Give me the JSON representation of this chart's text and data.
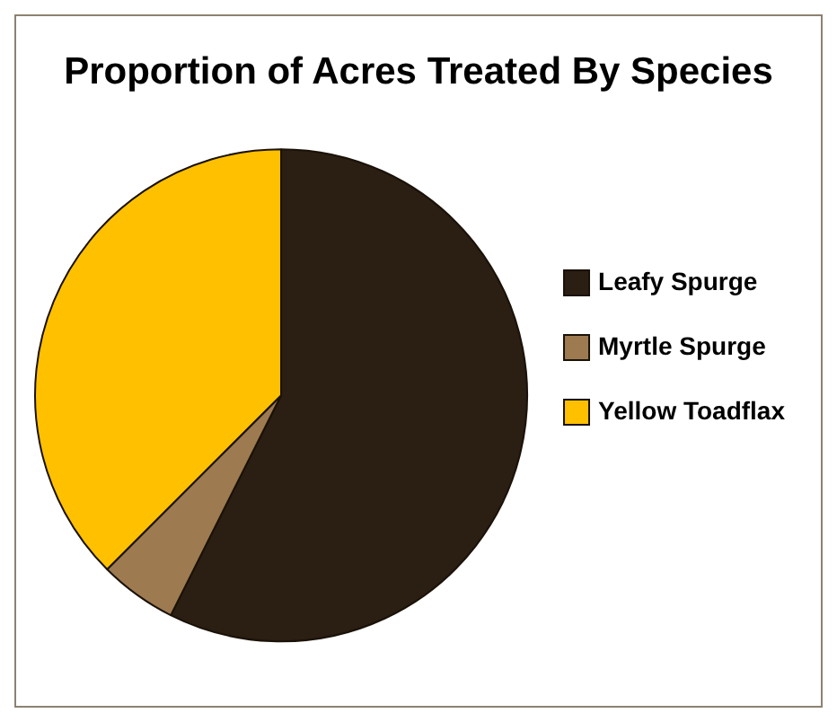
{
  "chart_data": {
    "type": "pie",
    "title": "Proportion of Acres Treated By Species",
    "categories": [
      "Leafy Spurge",
      "Myrtle Spurge",
      "Yellow Toadflax"
    ],
    "values": [
      57.4,
      5.1,
      37.5
    ],
    "colors": [
      "#2b1e12",
      "#9e7a50",
      "#ffc000"
    ],
    "legend": "right"
  }
}
